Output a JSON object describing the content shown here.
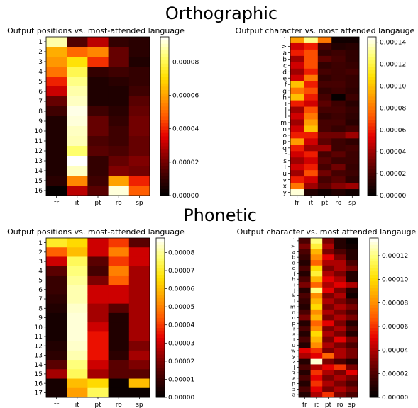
{
  "section_titles": [
    "Orthographic",
    "Phonetic"
  ],
  "colormap": {
    "name": "hot",
    "stops": [
      "#000000",
      "#3d0000",
      "#8b0000",
      "#e60000",
      "#ff5a00",
      "#ff9f00",
      "#ffe000",
      "#ffff6e",
      "#ffffff"
    ]
  },
  "chart_data": [
    {
      "type": "heatmap",
      "title": "Output positions vs. most-attended language",
      "x": [
        "fr",
        "it",
        "pt",
        "ro",
        "sp"
      ],
      "y": [
        "1",
        "2",
        "3",
        "4",
        "5",
        "6",
        "7",
        "8",
        "9",
        "10",
        "11",
        "12",
        "13",
        "14",
        "15",
        "16"
      ],
      "vmin": 0,
      "vmax": 9.5e-05,
      "colorbar_ticks": [
        "0.00000",
        "0.00002",
        "0.00004",
        "0.00006",
        "0.00008"
      ],
      "colorbar_values": [
        0,
        2e-05,
        4e-05,
        6e-05,
        8e-05
      ],
      "values": [
        [
          8.8e-05,
          1.5e-05,
          3e-05,
          1e-05,
          8e-06
        ],
        [
          6.2e-05,
          5e-05,
          5.5e-05,
          1.8e-05,
          8e-06
        ],
        [
          5.8e-05,
          7.2e-05,
          4.2e-05,
          1.8e-05,
          6e-06
        ],
        [
          5.2e-05,
          8e-05,
          1e-05,
          1.2e-05,
          1e-05
        ],
        [
          4e-05,
          8.5e-05,
          6e-06,
          8e-06,
          1e-05
        ],
        [
          3.2e-05,
          8.8e-05,
          6e-06,
          6e-06,
          1.2e-05
        ],
        [
          1.8e-05,
          9e-05,
          6e-06,
          6e-06,
          1.6e-05
        ],
        [
          1.2e-05,
          9.3e-05,
          1.2e-05,
          8e-06,
          1.8e-05
        ],
        [
          6e-06,
          9.2e-05,
          1.8e-05,
          1e-05,
          2e-05
        ],
        [
          6e-06,
          9e-05,
          1.8e-05,
          1.2e-05,
          2e-05
        ],
        [
          6e-06,
          8.9e-05,
          1.4e-05,
          1.2e-05,
          1.8e-05
        ],
        [
          6e-06,
          8.3e-05,
          1.6e-05,
          1.4e-05,
          1.8e-05
        ],
        [
          6e-06,
          9.5e-05,
          1e-05,
          1.8e-05,
          2.2e-05
        ],
        [
          6e-06,
          9e-05,
          1e-05,
          2.2e-05,
          2e-05
        ],
        [
          8e-06,
          5.5e-05,
          1.2e-05,
          6e-05,
          4e-05
        ],
        [
          1e-06,
          3e-05,
          1.6e-05,
          9.2e-05,
          4.8e-05
        ]
      ]
    },
    {
      "type": "heatmap",
      "title": "Output character vs. most attended langauge",
      "x": [
        "fr",
        "it",
        "pt",
        "ro",
        "sp"
      ],
      "y": [
        "`",
        ">",
        "a",
        "b",
        "c",
        "d",
        "e",
        "f",
        "g",
        "h",
        "i",
        "j",
        "l",
        "m",
        "n",
        "o",
        "p",
        "q",
        "r",
        "s",
        "t",
        "u",
        "v",
        "x",
        "y"
      ],
      "vmin": 0,
      "vmax": 0.000145,
      "colorbar_ticks": [
        "0.00000",
        "0.00002",
        "0.00004",
        "0.00006",
        "0.00008",
        "0.00010",
        "0.00012",
        "0.00014"
      ],
      "colorbar_values": [
        0,
        2e-05,
        4e-05,
        6e-05,
        8e-05,
        0.0001,
        0.00012,
        0.00014
      ],
      "values": [
        [
          9e-05,
          0.00013,
          8e-05,
          5e-06,
          5e-06
        ],
        [
          5e-05,
          6e-05,
          2e-05,
          1e-05,
          1.2e-05
        ],
        [
          6e-05,
          7e-05,
          1.5e-05,
          1.8e-05,
          1.4e-05
        ],
        [
          4e-05,
          7e-05,
          2.5e-05,
          2e-05,
          1.4e-05
        ],
        [
          5e-05,
          7e-05,
          1.5e-05,
          1.8e-05,
          1.6e-05
        ],
        [
          4e-05,
          6e-05,
          2e-05,
          1.8e-05,
          2e-05
        ],
        [
          5e-05,
          8e-05,
          1.5e-05,
          1.8e-05,
          1.6e-05
        ],
        [
          0.0001,
          6e-05,
          2e-05,
          2e-05,
          1.6e-05
        ],
        [
          8e-05,
          7e-05,
          1.5e-05,
          1.8e-05,
          1.4e-05
        ],
        [
          0.0001,
          6e-05,
          2e-05,
          2e-06,
          1.8e-05
        ],
        [
          6e-05,
          5e-05,
          2.5e-05,
          1.8e-05,
          1.2e-05
        ],
        [
          4e-05,
          7e-05,
          2e-05,
          2e-05,
          1.6e-05
        ],
        [
          5e-05,
          8e-05,
          1.5e-05,
          1.8e-05,
          1.4e-05
        ],
        [
          4e-05,
          9e-05,
          2e-05,
          2e-05,
          1.2e-05
        ],
        [
          5e-05,
          0.0001,
          2e-05,
          1.6e-05,
          2e-05
        ],
        [
          6e-05,
          6e-05,
          3e-05,
          3e-05,
          4e-05
        ],
        [
          9e-05,
          5e-05,
          2.5e-05,
          1.8e-05,
          1.4e-05
        ],
        [
          6e-05,
          4e-05,
          4e-05,
          1.8e-05,
          2e-05
        ],
        [
          5e-05,
          6e-05,
          2e-05,
          2.5e-05,
          1.8e-05
        ],
        [
          4e-05,
          5e-05,
          2.5e-05,
          1.8e-05,
          1.8e-05
        ],
        [
          5e-05,
          6e-05,
          2e-05,
          3e-05,
          1.6e-05
        ],
        [
          4e-05,
          7e-05,
          3e-05,
          2e-05,
          1.8e-05
        ],
        [
          6e-05,
          5e-05,
          2e-05,
          2.5e-05,
          1.4e-05
        ],
        [
          8e-05,
          4e-05,
          2.5e-05,
          3.5e-05,
          4e-05
        ],
        [
          0.00014,
          1e-05,
          5e-06,
          1e-05,
          5e-06
        ]
      ]
    },
    {
      "type": "heatmap",
      "title": "Output positions vs. most-attended language",
      "x": [
        "fr",
        "it",
        "pt",
        "ro",
        "sp"
      ],
      "y": [
        "1",
        "2",
        "3",
        "4",
        "5",
        "6",
        "7",
        "8",
        "9",
        "10",
        "11",
        "12",
        "13",
        "14",
        "15",
        "16",
        "17"
      ],
      "vmin": 0,
      "vmax": 8.8e-05,
      "colorbar_ticks": [
        "0.00000",
        "0.00001",
        "0.00002",
        "0.00003",
        "0.00004",
        "0.00005",
        "0.00006",
        "0.00007",
        "0.00008"
      ],
      "colorbar_values": [
        0,
        1e-05,
        2e-05,
        3e-05,
        4e-05,
        5e-05,
        6e-05,
        7e-05,
        8e-05
      ],
      "values": [
        [
          7e-05,
          6.5e-05,
          3e-05,
          4e-05,
          1.5e-05
        ],
        [
          4.5e-05,
          6e-05,
          3e-05,
          5e-05,
          3e-05
        ],
        [
          3e-05,
          7.5e-05,
          1.5e-05,
          4e-05,
          3e-05
        ],
        [
          1.5e-05,
          7.8e-05,
          1.2e-05,
          5e-05,
          2.5e-05
        ],
        [
          1e-05,
          8e-05,
          2e-05,
          4.5e-05,
          2.5e-05
        ],
        [
          1e-05,
          8.2e-05,
          3e-05,
          3e-05,
          2.5e-05
        ],
        [
          8e-06,
          8.2e-05,
          3e-05,
          3e-05,
          2.5e-05
        ],
        [
          6e-06,
          8.4e-05,
          2.5e-05,
          1.5e-05,
          2.5e-05
        ],
        [
          4e-06,
          8.5e-05,
          2.5e-05,
          6e-06,
          2.5e-05
        ],
        [
          4e-06,
          8.5e-05,
          3e-05,
          6e-06,
          2.5e-05
        ],
        [
          4e-06,
          8.5e-05,
          3.5e-05,
          6e-06,
          2.5e-05
        ],
        [
          6e-06,
          8.4e-05,
          3.5e-05,
          6e-06,
          2e-05
        ],
        [
          8e-06,
          8.2e-05,
          3.5e-05,
          8e-06,
          2.5e-05
        ],
        [
          1.5e-05,
          7.8e-05,
          3e-05,
          1.5e-05,
          2e-05
        ],
        [
          2.5e-05,
          7.5e-05,
          2.5e-05,
          1.5e-05,
          1.5e-05
        ],
        [
          4e-06,
          6e-05,
          6.5e-05,
          2e-06,
          6e-05
        ],
        [
          4e-06,
          5.5e-05,
          7.5e-05,
          2e-06,
          2e-06
        ]
      ]
    },
    {
      "type": "heatmap",
      "title": "Output character vs. most attended langauge",
      "x": [
        "fr",
        "it",
        "pt",
        "ro",
        "sp"
      ],
      "y": [
        "`",
        ">",
        "a",
        "b",
        "d",
        "e",
        "f",
        "h",
        "i",
        "j",
        "k",
        "l",
        "m",
        "n",
        "o",
        "p",
        "r",
        "s",
        "t",
        "u",
        "w",
        "y",
        "z",
        "ʃ",
        "ʒ",
        "ɛ",
        "ɲ",
        "ɔ",
        "ə"
      ],
      "vmin": 0,
      "vmax": 0.000135,
      "colorbar_ticks": [
        "0.00000",
        "0.00002",
        "0.00004",
        "0.00006",
        "0.00008",
        "0.00010",
        "0.00012"
      ],
      "colorbar_values": [
        0,
        2e-05,
        4e-05,
        6e-05,
        8e-05,
        0.0001,
        0.00012
      ],
      "values": [
        [
          2e-05,
          0.00012,
          3e-05,
          1e-05,
          2e-06
        ],
        [
          3e-05,
          0.00011,
          4e-05,
          1e-05,
          5e-06
        ],
        [
          2e-05,
          9e-05,
          3e-05,
          2e-05,
          1e-05
        ],
        [
          1.5e-05,
          8e-05,
          5e-05,
          3e-05,
          1e-05
        ],
        [
          1e-05,
          7e-05,
          4e-05,
          4e-05,
          2e-05
        ],
        [
          2e-05,
          0.0001,
          3e-05,
          4e-05,
          3e-05
        ],
        [
          1e-05,
          0.00011,
          4e-05,
          3e-05,
          1e-05
        ],
        [
          2e-05,
          9e-05,
          5e-05,
          4e-05,
          1e-05
        ],
        [
          3e-05,
          7e-05,
          4e-05,
          5e-05,
          4e-05
        ],
        [
          1e-05,
          0.00012,
          5e-05,
          3e-05,
          1e-05
        ],
        [
          2e-05,
          8e-05,
          3e-05,
          4e-05,
          5e-06
        ],
        [
          1.5e-05,
          9e-05,
          4e-05,
          3e-05,
          2e-05
        ],
        [
          1e-05,
          0.0001,
          3e-05,
          4e-05,
          3e-05
        ],
        [
          2e-05,
          8e-05,
          4e-05,
          3e-05,
          2e-05
        ],
        [
          3e-05,
          9e-05,
          3e-05,
          4e-05,
          3e-05
        ],
        [
          1e-05,
          7e-05,
          5e-05,
          3e-05,
          1e-05
        ],
        [
          2e-05,
          8e-05,
          3e-05,
          4e-05,
          2e-05
        ],
        [
          1e-05,
          0.0001,
          4e-05,
          3e-05,
          1e-05
        ],
        [
          2e-05,
          9e-05,
          3e-05,
          5e-05,
          3e-05
        ],
        [
          1e-05,
          8e-05,
          4e-05,
          3e-05,
          2e-05
        ],
        [
          5e-05,
          6e-05,
          3e-05,
          4e-05,
          3e-05
        ],
        [
          4e-05,
          5e-05,
          7e-05,
          4e-05,
          3e-05
        ],
        [
          1e-05,
          0.00013,
          3e-05,
          2e-05,
          1e-05
        ],
        [
          2e-05,
          4e-05,
          5e-05,
          6e-05,
          3e-05
        ],
        [
          1e-05,
          6e-05,
          4e-05,
          3e-05,
          5e-05
        ],
        [
          2e-05,
          5e-05,
          3e-05,
          4e-05,
          3e-05
        ],
        [
          1e-05,
          6e-05,
          4e-05,
          3e-05,
          2e-05
        ],
        [
          2e-05,
          5e-05,
          3e-05,
          4e-05,
          3e-05
        ],
        [
          1e-05,
          4e-05,
          6e-05,
          3e-05,
          2e-05
        ]
      ]
    }
  ]
}
